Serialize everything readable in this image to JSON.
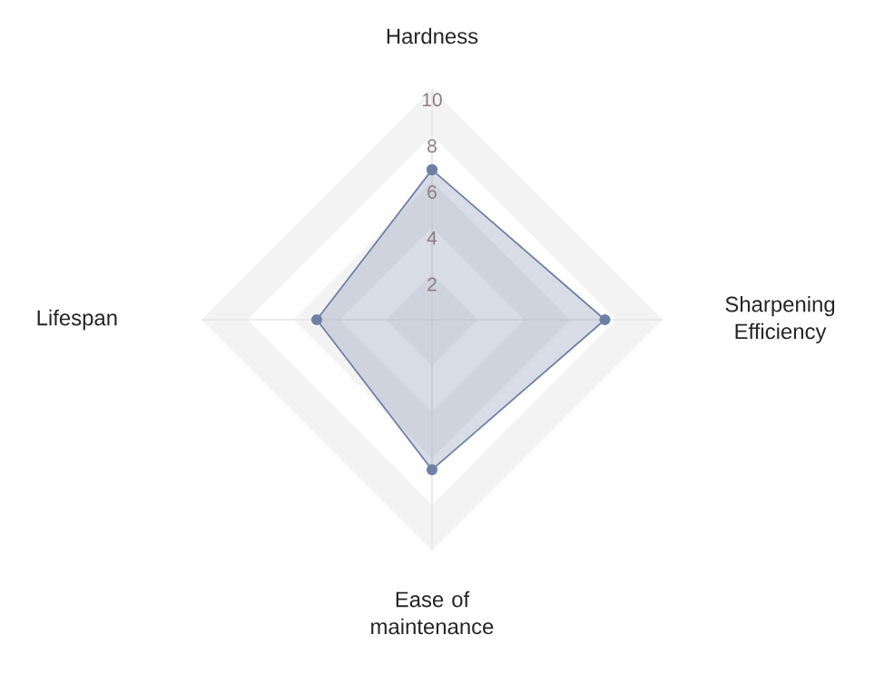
{
  "chart_data": {
    "type": "radar",
    "categories": [
      "Hardness",
      "Sharpening Efficiency",
      "Ease of maintenance",
      "Lifespan"
    ],
    "series": [
      {
        "color": "#6f80a6",
        "values": [
          6.5,
          7.5,
          6.5,
          5
        ]
      }
    ],
    "ylim": [
      0,
      10
    ],
    "yticks": [
      2,
      4,
      6,
      8,
      10
    ],
    "grid": true,
    "marker": "circle",
    "line_style": "solid"
  }
}
